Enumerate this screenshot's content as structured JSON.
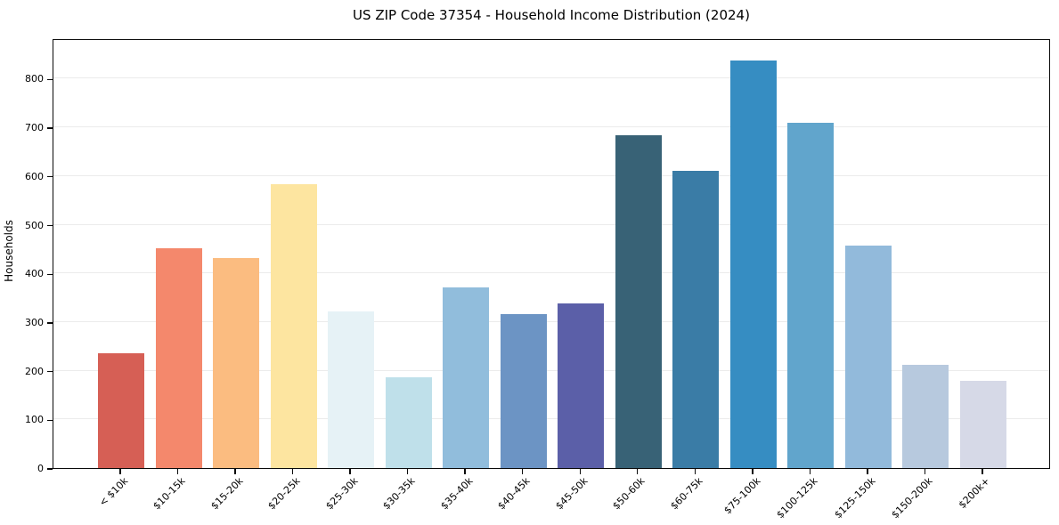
{
  "chart_data": {
    "type": "bar",
    "title": "US ZIP Code 37354 - Household Income Distribution (2024)",
    "xlabel": "",
    "ylabel": "Households",
    "categories": [
      "< $10k",
      "$10-15k",
      "$15-20k",
      "$20-25k",
      "$25-30k",
      "$30-35k",
      "$35-40k",
      "$40-45k",
      "$45-50k",
      "$50-60k",
      "$60-75k",
      "$75-100k",
      "$100-125k",
      "$125-150k",
      "$150-200k",
      "$200k+"
    ],
    "values": [
      236,
      452,
      432,
      583,
      322,
      187,
      371,
      317,
      338,
      683,
      610,
      838,
      709,
      457,
      212,
      179
    ],
    "bar_colors": [
      "#d65f55",
      "#f4886c",
      "#fbbc80",
      "#fde5a0",
      "#e6f2f6",
      "#bfe0ea",
      "#91bddc",
      "#6c94c4",
      "#5b5fa8",
      "#386276",
      "#3a7ca6",
      "#368dc2",
      "#61a5cc",
      "#92badb",
      "#b7c9de",
      "#d6d9e7"
    ],
    "yticks": [
      0,
      100,
      200,
      300,
      400,
      500,
      600,
      700,
      800
    ],
    "ylim": [
      0,
      883
    ],
    "grid": true,
    "legend": "none",
    "axis_color": "#0a0a0a",
    "grid_color": "#ebebeb",
    "background_color": "#ffffff"
  }
}
